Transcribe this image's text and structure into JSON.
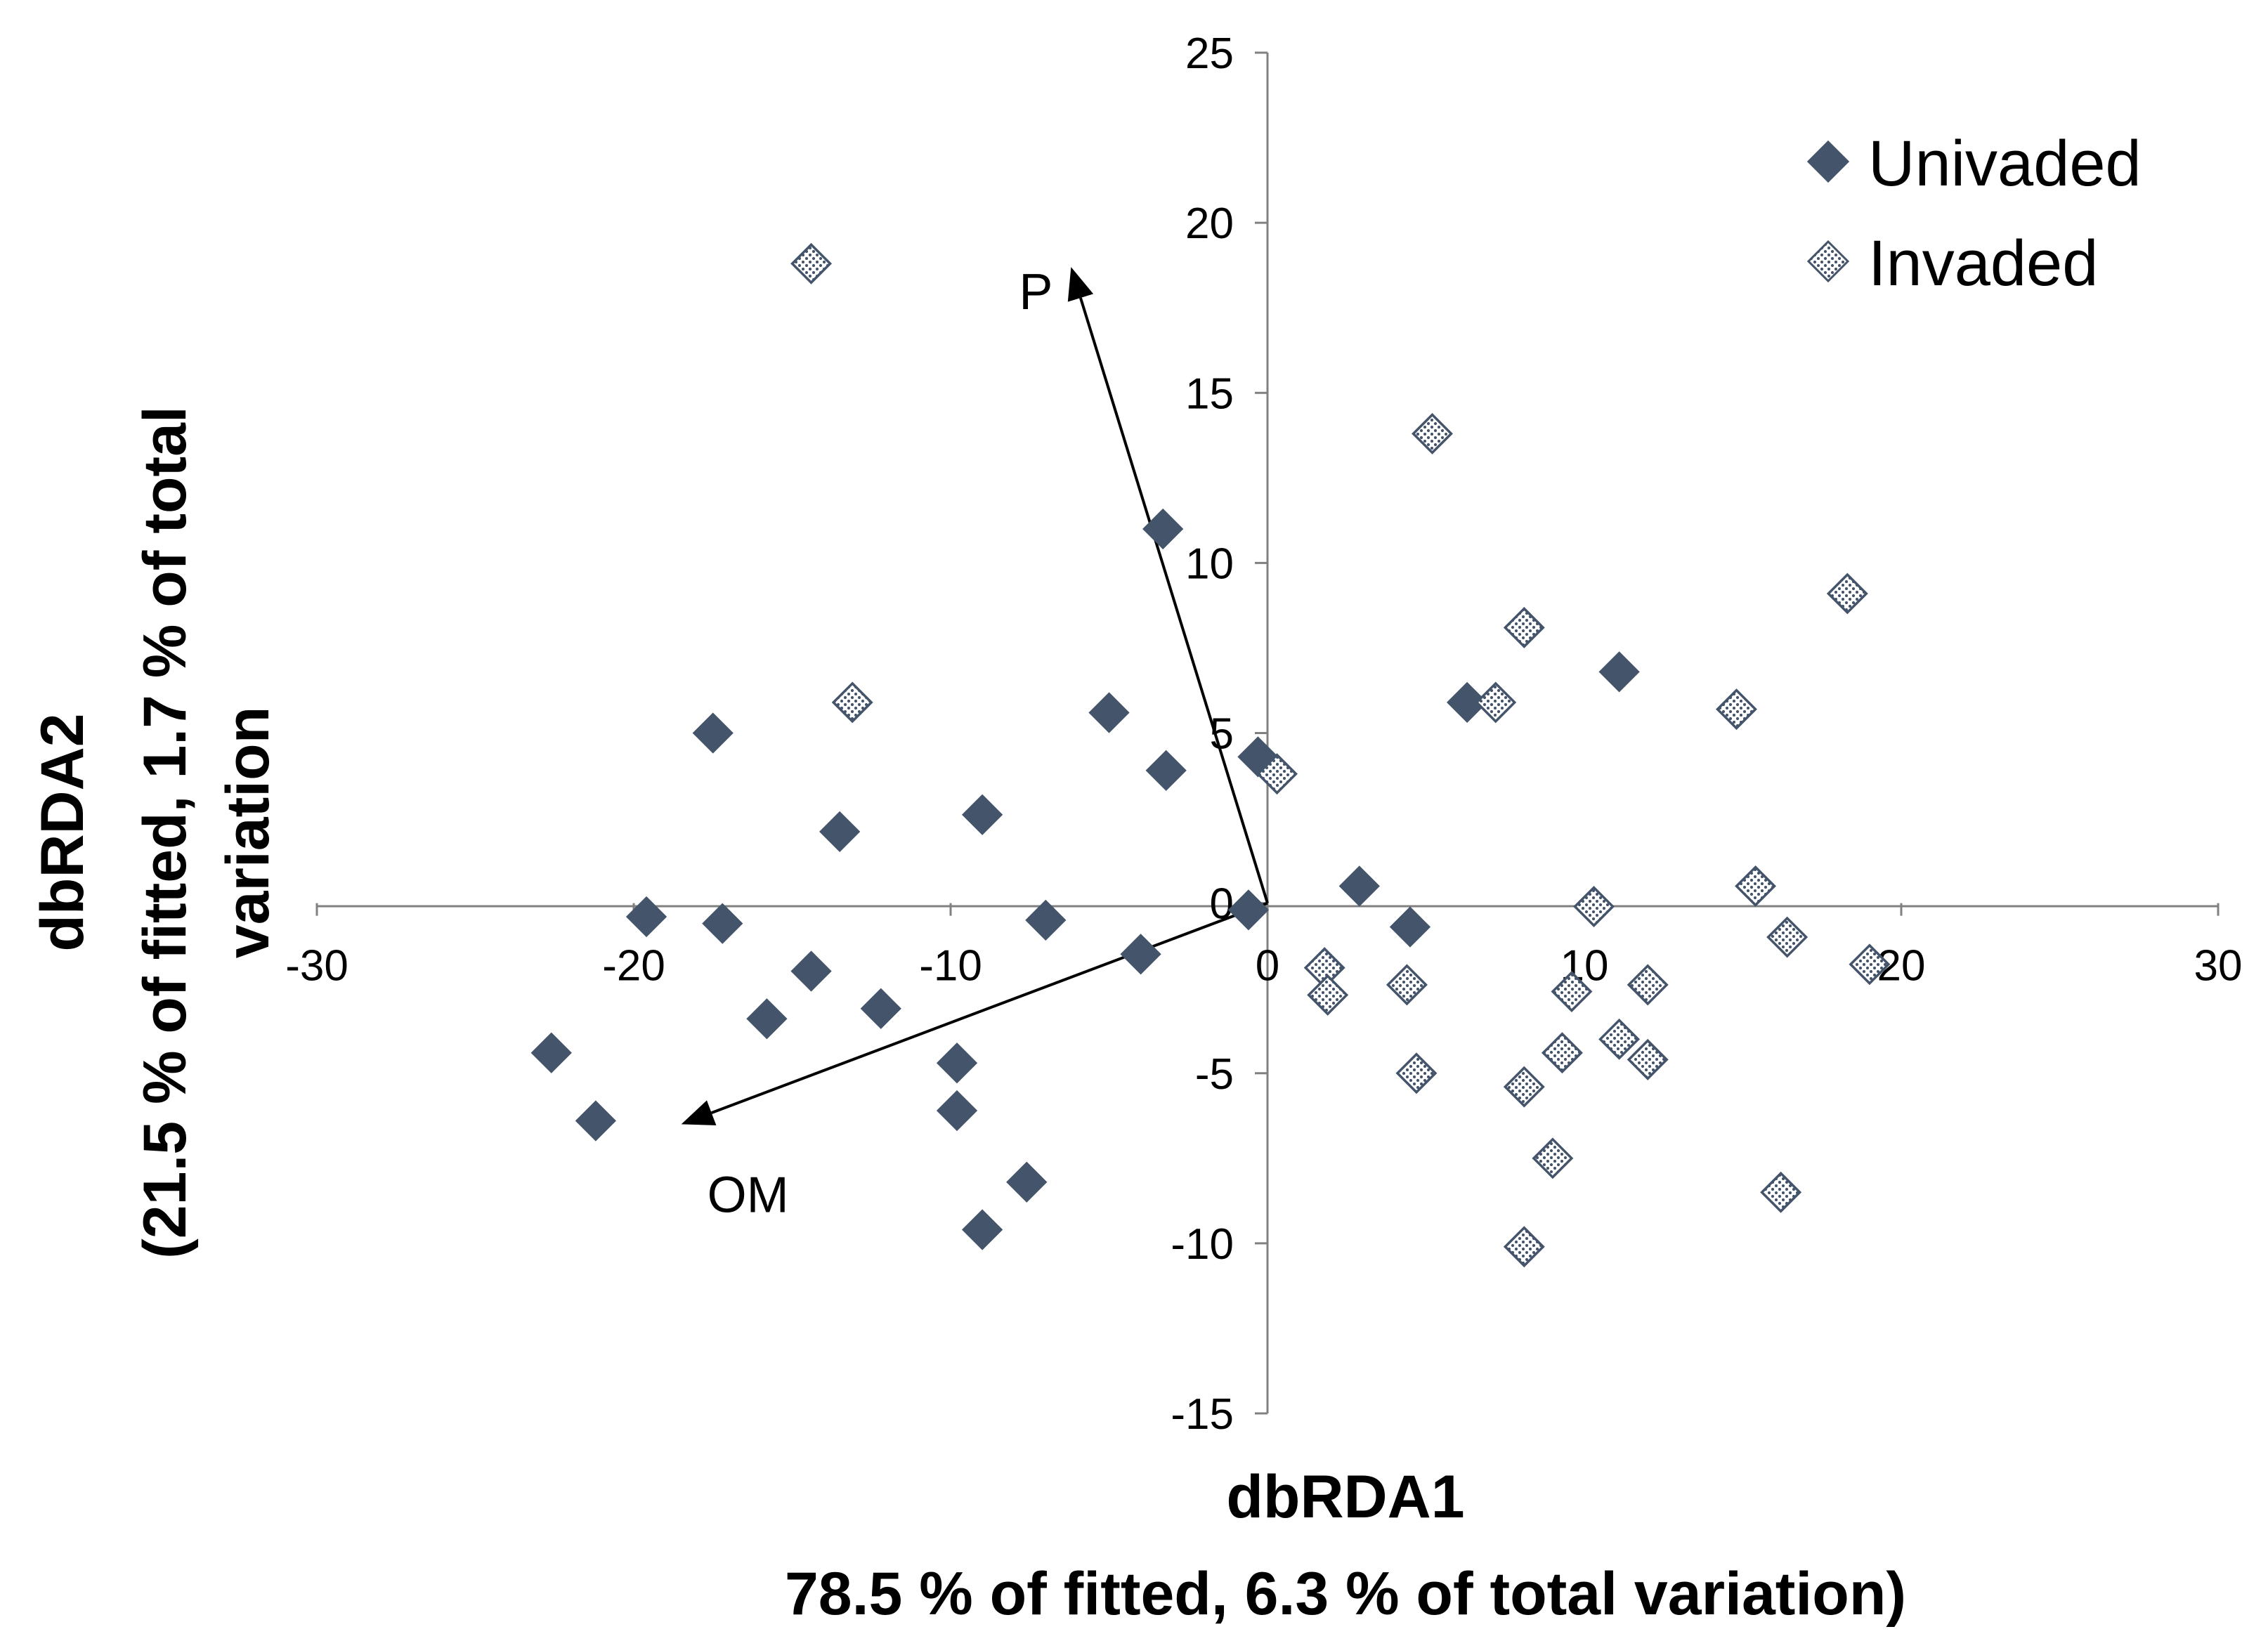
{
  "chart_data": {
    "type": "scatter",
    "title": "",
    "xlabel": [
      "dbRDA1",
      "78.5 % of fitted, 6.3 % of total variation)"
    ],
    "ylabel": [
      "dbRDA2",
      "(21.5 % of fitted, 1.7 % of total",
      "variation"
    ],
    "xlim": [
      -30,
      30
    ],
    "ylim": [
      -15,
      25
    ],
    "xticks": [
      -30,
      -20,
      -10,
      0,
      10,
      20,
      30
    ],
    "yticks": [
      -15,
      -10,
      -5,
      0,
      5,
      10,
      15,
      20,
      25
    ],
    "xtick_labels": [
      "-30",
      "-20",
      "-10",
      "0",
      "10",
      "20",
      "30"
    ],
    "ytick_labels": [
      "-15",
      "-10",
      "-5",
      "0",
      "5",
      "10",
      "15",
      "20",
      "25"
    ],
    "legend_position": "top-right",
    "series": [
      {
        "name": "Univaded",
        "marker": "filled-diamond",
        "color": "#44546a",
        "points": [
          [
            -22.6,
            -4.4
          ],
          [
            -21.2,
            -6.4
          ],
          [
            -19.6,
            -0.4
          ],
          [
            -17.5,
            5.0
          ],
          [
            -17.2,
            -0.6
          ],
          [
            -15.8,
            -3.4
          ],
          [
            -14.4,
            -2.0
          ],
          [
            -13.5,
            2.1
          ],
          [
            -12.2,
            -3.1
          ],
          [
            -9.8,
            -4.7
          ],
          [
            -9.8,
            -6.1
          ],
          [
            -9.0,
            2.6
          ],
          [
            -9.0,
            -9.6
          ],
          [
            -7.6,
            -8.2
          ],
          [
            -7.0,
            -0.5
          ],
          [
            -5.0,
            5.6
          ],
          [
            -4.0,
            -1.5
          ],
          [
            -3.3,
            11.0
          ],
          [
            -3.2,
            3.9
          ],
          [
            -0.6,
            -0.2
          ],
          [
            -0.3,
            4.3
          ],
          [
            2.9,
            0.5
          ],
          [
            4.5,
            -0.7
          ],
          [
            6.3,
            5.9
          ],
          [
            11.1,
            6.8
          ]
        ]
      },
      {
        "name": "Invaded",
        "marker": "dotted-diamond",
        "color": "#44546a",
        "points": [
          [
            -14.4,
            18.8
          ],
          [
            -13.1,
            5.9
          ],
          [
            0.3,
            3.8
          ],
          [
            1.8,
            -1.9
          ],
          [
            1.9,
            -2.7
          ],
          [
            4.4,
            -2.4
          ],
          [
            4.7,
            -5.0
          ],
          [
            5.2,
            13.8
          ],
          [
            7.2,
            5.9
          ],
          [
            8.1,
            8.1
          ],
          [
            8.1,
            -5.4
          ],
          [
            8.1,
            -10.1
          ],
          [
            9.0,
            -7.5
          ],
          [
            9.3,
            -4.4
          ],
          [
            9.6,
            -2.6
          ],
          [
            10.3,
            -0.1
          ],
          [
            11.1,
            -4.0
          ],
          [
            12.0,
            -4.6
          ],
          [
            12.0,
            -2.4
          ],
          [
            14.8,
            5.7
          ],
          [
            15.4,
            0.5
          ],
          [
            16.2,
            -8.5
          ],
          [
            16.4,
            -1.0
          ],
          [
            18.3,
            9.1
          ],
          [
            19.0,
            -1.8
          ]
        ]
      }
    ],
    "vectors": [
      {
        "label": "P",
        "from": [
          0,
          0
        ],
        "to": [
          -6.2,
          18.7
        ]
      },
      {
        "label": "OM",
        "from": [
          0,
          0
        ],
        "to": [
          -18.5,
          -6.5
        ]
      }
    ]
  }
}
